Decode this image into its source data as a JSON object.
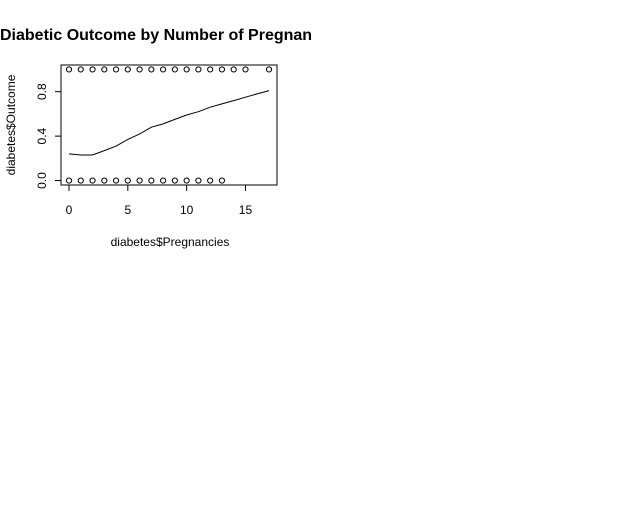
{
  "chart_data": {
    "type": "scatter",
    "title": "Diabetic Outcome by Number of Pregnan",
    "xlabel": "diabetes$Pregnancies",
    "ylabel": "diabetes$Outcome",
    "xlim": [
      -0.68,
      17.68
    ],
    "ylim": [
      -0.04,
      1.04
    ],
    "x_ticks": [
      0,
      5,
      10,
      15
    ],
    "y_ticks": [
      0.0,
      0.4,
      0.8
    ],
    "x_tick_labels": [
      "0",
      "5",
      "10",
      "15"
    ],
    "y_tick_labels": [
      "0.0",
      "0.4",
      "0.8"
    ],
    "grid": false,
    "series": [
      {
        "kind": "points",
        "marker": "open-circle",
        "x": [
          0,
          1,
          2,
          3,
          4,
          5,
          6,
          7,
          8,
          9,
          10,
          11,
          12,
          13,
          14,
          15,
          17,
          0,
          1,
          2,
          3,
          4,
          5,
          6,
          7,
          8,
          9,
          10,
          11,
          12,
          13
        ],
        "y": [
          1,
          1,
          1,
          1,
          1,
          1,
          1,
          1,
          1,
          1,
          1,
          1,
          1,
          1,
          1,
          1,
          1,
          0,
          0,
          0,
          0,
          0,
          0,
          0,
          0,
          0,
          0,
          0,
          0,
          0,
          0
        ]
      },
      {
        "kind": "line",
        "x": [
          0,
          1,
          2,
          3,
          4,
          5,
          6,
          7,
          8,
          9,
          10,
          11,
          12,
          13,
          14,
          15,
          16,
          17
        ],
        "y": [
          0.24,
          0.23,
          0.23,
          0.27,
          0.31,
          0.37,
          0.42,
          0.48,
          0.51,
          0.55,
          0.59,
          0.62,
          0.66,
          0.69,
          0.72,
          0.75,
          0.78,
          0.81
        ]
      }
    ]
  }
}
